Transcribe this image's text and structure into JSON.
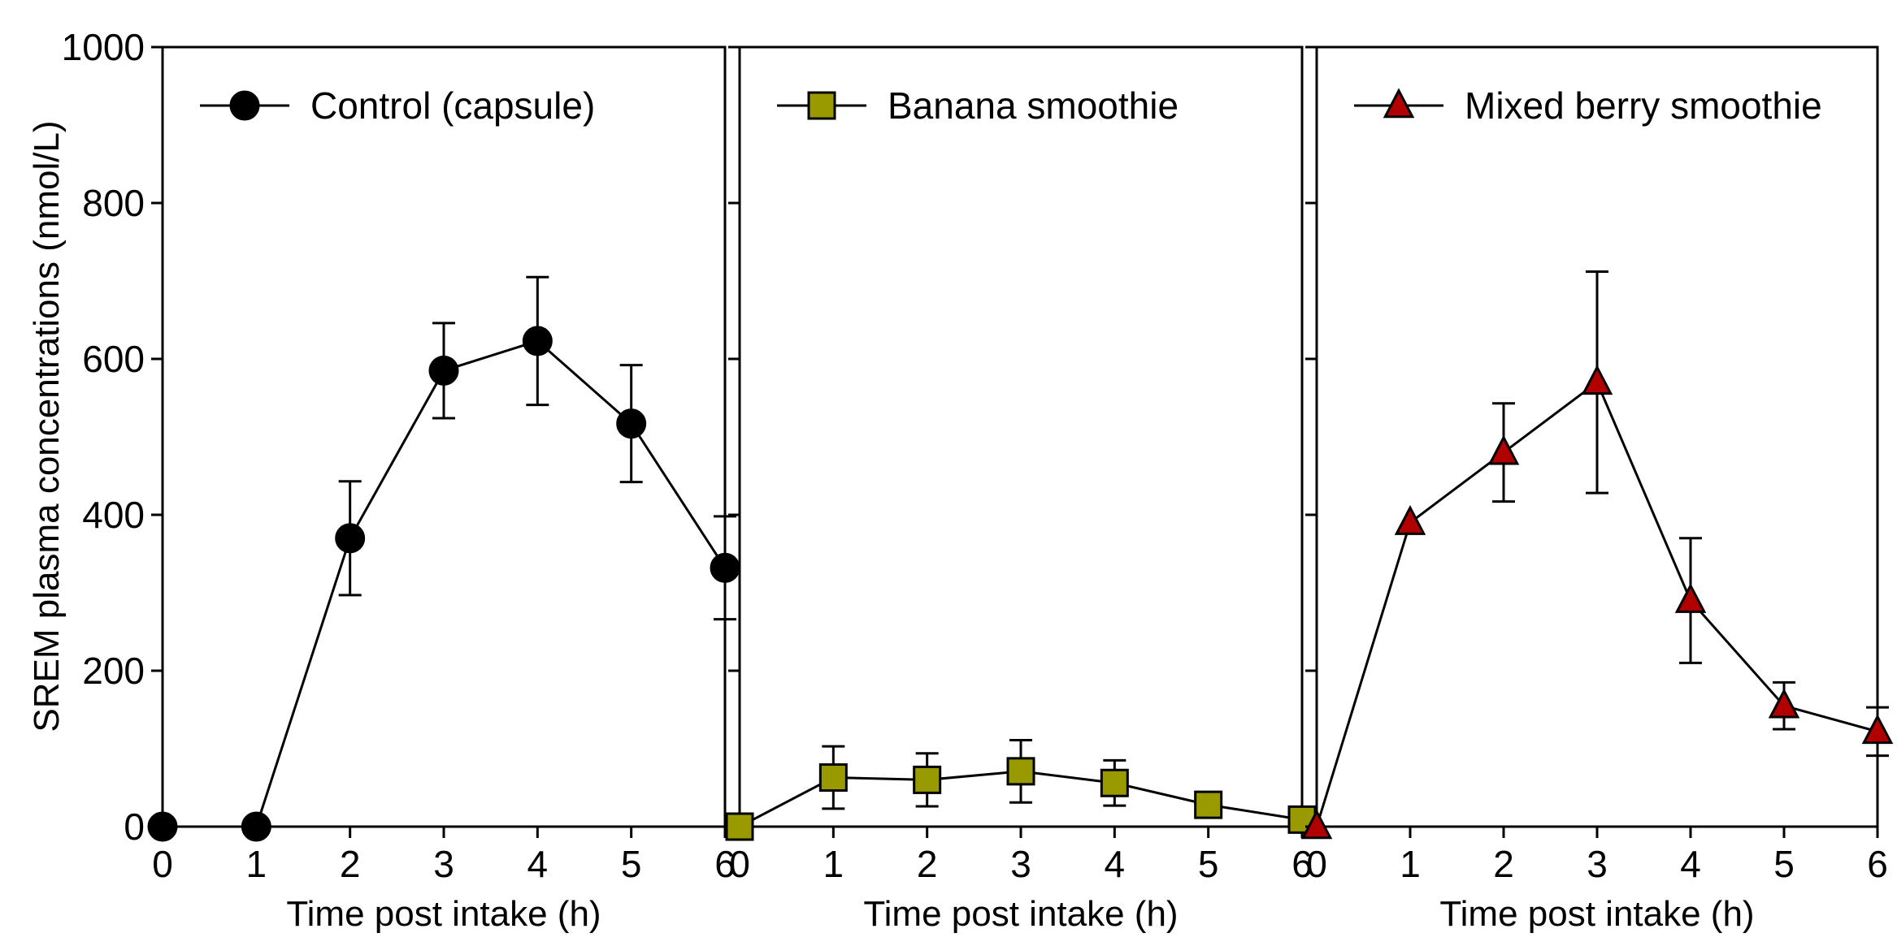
{
  "chart_data": {
    "type": "line",
    "y_axis": {
      "label": "SREM plasma concentrations (nmol/L)",
      "ylim": [
        0,
        1000
      ],
      "ticks": [
        "0",
        "200",
        "400",
        "600",
        "800",
        "1000"
      ]
    },
    "panels": [
      {
        "xlabel": "Time post intake (h)",
        "xlim": [
          0,
          6
        ],
        "x_ticks": [
          "0",
          "1",
          "2",
          "3",
          "4",
          "5",
          "6"
        ],
        "series": [
          {
            "name": "Control (capsule)",
            "marker": "circle",
            "color": "#000000",
            "x": [
              0,
              1,
              2,
              3,
              4,
              5,
              6
            ],
            "y": [
              0,
              0,
              370,
              585,
              623,
              517,
              332
            ],
            "error": [
              0,
              0,
              73,
              61,
              82,
              75,
              66
            ]
          }
        ],
        "legend": "top-left"
      },
      {
        "xlabel": "Time post intake (h)",
        "xlim": [
          0,
          6
        ],
        "x_ticks": [
          "0",
          "1",
          "2",
          "3",
          "4",
          "5",
          "6"
        ],
        "series": [
          {
            "name": "Banana smoothie",
            "marker": "square",
            "color": "#999900",
            "x": [
              0,
              1,
              2,
              3,
              4,
              5,
              6
            ],
            "y": [
              0,
              63,
              60,
              71,
              56,
              28,
              9
            ],
            "error": [
              0,
              40,
              34,
              40,
              29,
              0,
              0
            ]
          }
        ],
        "legend": "top-left"
      },
      {
        "xlabel": "Time post intake (h)",
        "xlim": [
          0,
          6
        ],
        "x_ticks": [
          "0",
          "1",
          "2",
          "3",
          "4",
          "5",
          "6"
        ],
        "series": [
          {
            "name": "Mixed berry smoothie",
            "marker": "triangle",
            "color": "#B00000",
            "x": [
              0,
              1,
              2,
              3,
              4,
              5,
              6
            ],
            "y": [
              0,
              390,
              480,
              570,
              290,
              155,
              122
            ],
            "error": [
              0,
              0,
              63,
              142,
              80,
              30,
              31
            ]
          }
        ],
        "legend": "top-left"
      }
    ]
  }
}
